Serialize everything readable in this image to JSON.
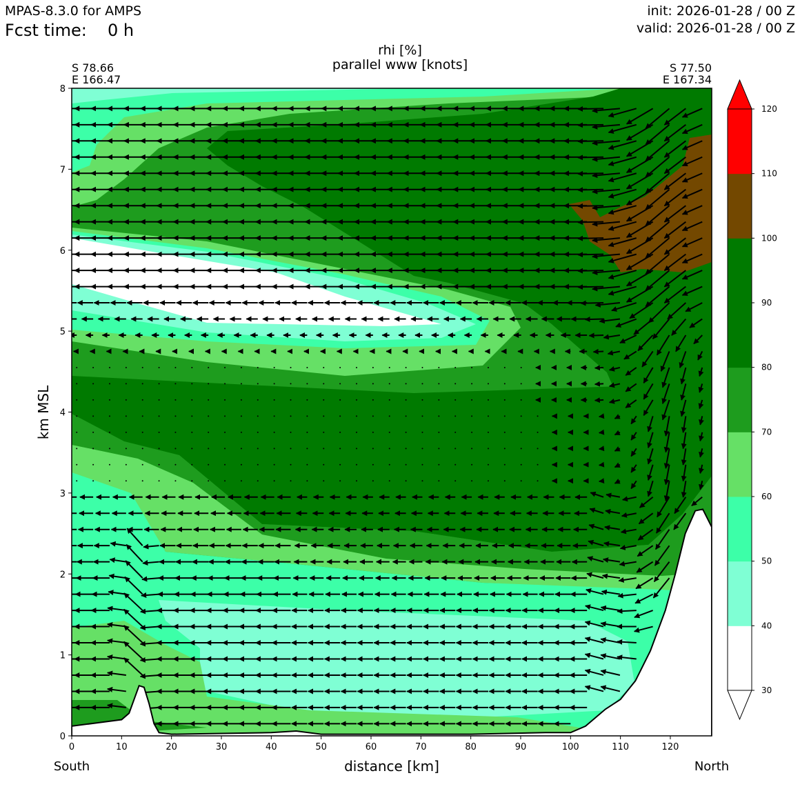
{
  "header": {
    "model": "MPAS-8.3.0 for AMPS",
    "fcst_label": "Fcst time:",
    "fcst_value": "0 h",
    "init": "init: 2026-01-28 / 00 Z",
    "valid": "valid: 2026-01-28 / 00 Z"
  },
  "chart_data": {
    "type": "contourf",
    "title": "rhi [%]",
    "subtitle": "parallel www [knots]",
    "xlabel": "distance [km]",
    "ylabel": "km MSL",
    "xlim": [
      0,
      128.3
    ],
    "ylim": [
      0,
      8
    ],
    "x_ticks": [
      0,
      10,
      20,
      30,
      40,
      50,
      60,
      70,
      80,
      90,
      100,
      110,
      120
    ],
    "y_ticks": [
      0,
      1,
      2,
      3,
      4,
      5,
      6,
      7,
      8
    ],
    "left_end": {
      "lat": "S 78.66",
      "lon": "E 166.47",
      "dir": "South"
    },
    "right_end": {
      "lat": "S 77.50",
      "lon": "E 167.34",
      "dir": "North"
    },
    "colorbar": {
      "levels": [
        30,
        40,
        50,
        60,
        70,
        80,
        90,
        100,
        110,
        120
      ],
      "colors": [
        "#ffffff",
        "#7fffd4",
        "#3cffa8",
        "#66e066",
        "#1e9c1e",
        "#007a00",
        "#007a00",
        "#734800",
        "#ff0000"
      ],
      "extend": "both",
      "under_color": "#ffffff",
      "over_color": "#ff0000"
    },
    "terrain": [
      [
        0,
        0.12
      ],
      [
        5,
        0.16
      ],
      [
        10,
        0.2
      ],
      [
        11.5,
        0.28
      ],
      [
        12.5,
        0.45
      ],
      [
        13.5,
        0.62
      ],
      [
        14.5,
        0.6
      ],
      [
        15.5,
        0.4
      ],
      [
        16.5,
        0.15
      ],
      [
        17.5,
        0.04
      ],
      [
        20,
        0.02
      ],
      [
        30,
        0.03
      ],
      [
        40,
        0.04
      ],
      [
        45,
        0.06
      ],
      [
        50,
        0.02
      ],
      [
        60,
        0.02
      ],
      [
        80,
        0.02
      ],
      [
        95,
        0.04
      ],
      [
        100,
        0.04
      ],
      [
        103,
        0.12
      ],
      [
        107,
        0.33
      ],
      [
        110,
        0.45
      ],
      [
        113,
        0.68
      ],
      [
        116,
        1.05
      ],
      [
        119,
        1.55
      ],
      [
        121,
        2.0
      ],
      [
        123,
        2.5
      ],
      [
        125,
        2.78
      ],
      [
        126.5,
        2.8
      ],
      [
        128.3,
        2.58
      ]
    ],
    "wind_field": "parallel www vectors, strong southward (leftward) flow aloft above 5 km, descending northerly flow near 120-128 km, weak winds 3-4.5 km, strong leftward flow below 2.5 km with updraft/downdraft pair near 12-18 km",
    "rhi_regions": [
      {
        "label": "upper saturated zone (RHi 80-100%)",
        "x": [
          30,
          128
        ],
        "z": [
          5.0,
          8.0
        ]
      },
      {
        "label": "dry tongue (RHi < 40%)",
        "x": [
          0,
          65
        ],
        "z": [
          5.0,
          6.2
        ]
      },
      {
        "label": "ice-supersaturated patch (RHi 100-110%)",
        "x": [
          100,
          128
        ],
        "z": [
          5.7,
          7.6
        ]
      },
      {
        "label": "mid-level moist layer (RHi 80-90%)",
        "x": [
          0,
          125
        ],
        "z": [
          2.5,
          4.5
        ]
      },
      {
        "label": "low-level drier layer (RHi 40-60%)",
        "x": [
          0,
          115
        ],
        "z": [
          0.3,
          2.3
        ]
      }
    ]
  }
}
